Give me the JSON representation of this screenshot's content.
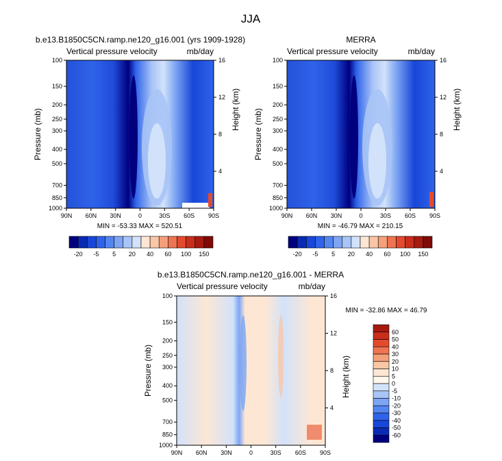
{
  "figure": {
    "title": "JJA"
  },
  "panels": [
    {
      "title": "b.e13.B1850C5CN.ramp.ne120_g16.001 (yrs 1909-1928)",
      "left_subtitle": "Vertical pressure velocity",
      "right_subtitle": "mb/day",
      "y_label": "Pressure (mb)",
      "y2_label": "Height (km)",
      "stats_text": "MIN = -53.33  MAX = 520.51"
    },
    {
      "title": "MERRA",
      "left_subtitle": "Vertical pressure velocity",
      "right_subtitle": "mb/day",
      "y_label": "Pressure (mb)",
      "y2_label": "Height (km)",
      "stats_text": "MIN = -46.79  MAX = 210.15"
    },
    {
      "title": "b.e13.B1850C5CN.ramp.ne120_g16.001 - MERRA",
      "left_subtitle": "Vertical pressure velocity",
      "right_subtitle": "mb/day",
      "y_label": "Pressure (mb)",
      "y2_label": "Height (km)",
      "stats_text": "MIN = -32.86  MAX =  46.79"
    }
  ],
  "chart_data": [
    {
      "type": "heatmap",
      "x_ticks": [
        "90N",
        "60N",
        "30N",
        "0",
        "30S",
        "60S",
        "90S"
      ],
      "y_ticks": [
        "100",
        "150",
        "200",
        "250",
        "300",
        "400",
        "500",
        "700",
        "850",
        "1000"
      ],
      "y2_ticks": [
        "16",
        "12",
        "8",
        "4"
      ],
      "y2_values_km": [
        16,
        12,
        8,
        4
      ],
      "colorbar_labels": [
        "-20",
        "-5",
        "5",
        "20",
        "40",
        "60",
        "100",
        "150"
      ],
      "colorbar_colors": [
        "#00007f",
        "#0a2ab3",
        "#1846d8",
        "#2f63ea",
        "#5486f0",
        "#7da5f3",
        "#a9c4f6",
        "#d2e2fa",
        "#fde7d4",
        "#f9c6a6",
        "#f4a07a",
        "#ee7452",
        "#e44a2e",
        "#c92d1b",
        "#a61a10",
        "#7f0a06"
      ],
      "min": -53.33,
      "max": 520.51
    },
    {
      "type": "heatmap",
      "x_ticks": [
        "90N",
        "60N",
        "30N",
        "0",
        "30S",
        "60S",
        "90S"
      ],
      "y_ticks": [
        "100",
        "150",
        "200",
        "250",
        "300",
        "400",
        "500",
        "700",
        "850",
        "1000"
      ],
      "y2_ticks": [
        "16",
        "12",
        "8",
        "4"
      ],
      "y2_values_km": [
        16,
        12,
        8,
        4
      ],
      "colorbar_labels": [
        "-20",
        "-5",
        "5",
        "20",
        "40",
        "60",
        "100",
        "150"
      ],
      "colorbar_colors": [
        "#00007f",
        "#0a2ab3",
        "#1846d8",
        "#2f63ea",
        "#5486f0",
        "#7da5f3",
        "#a9c4f6",
        "#d2e2fa",
        "#fde7d4",
        "#f9c6a6",
        "#f4a07a",
        "#ee7452",
        "#e44a2e",
        "#c92d1b",
        "#a61a10",
        "#7f0a06"
      ],
      "min": -46.79,
      "max": 210.15
    },
    {
      "type": "heatmap",
      "x_ticks": [
        "90N",
        "60N",
        "30N",
        "0",
        "30S",
        "60S",
        "90S"
      ],
      "y_ticks": [
        "100",
        "150",
        "200",
        "250",
        "300",
        "400",
        "500",
        "700",
        "850",
        "1000"
      ],
      "y2_ticks": [
        "16",
        "12",
        "8",
        "4"
      ],
      "y2_values_km": [
        16,
        12,
        8,
        4
      ],
      "colorbar_labels": [
        "60",
        "50",
        "40",
        "30",
        "20",
        "10",
        "5",
        "0",
        "-5",
        "-10",
        "-20",
        "-30",
        "-40",
        "-50",
        "-60"
      ],
      "colorbar_colors": [
        "#a61a10",
        "#c92d1b",
        "#e44a2e",
        "#ee7452",
        "#f4a07a",
        "#f9c6a6",
        "#fde7d4",
        "#fff6ec",
        "#d2e2fa",
        "#a9c4f6",
        "#7da5f3",
        "#5486f0",
        "#2f63ea",
        "#1846d8",
        "#0a2ab3",
        "#00007f"
      ],
      "min": -32.86,
      "max": 46.79
    }
  ]
}
